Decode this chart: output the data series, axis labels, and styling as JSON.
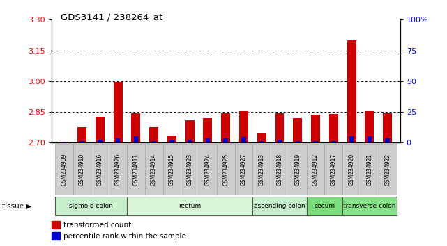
{
  "title": "GDS3141 / 238264_at",
  "samples": [
    "GSM234909",
    "GSM234910",
    "GSM234916",
    "GSM234926",
    "GSM234911",
    "GSM234914",
    "GSM234915",
    "GSM234923",
    "GSM234924",
    "GSM234925",
    "GSM234927",
    "GSM234913",
    "GSM234918",
    "GSM234919",
    "GSM234912",
    "GSM234917",
    "GSM234920",
    "GSM234921",
    "GSM234922"
  ],
  "red_values": [
    2.705,
    2.775,
    2.825,
    2.995,
    2.845,
    2.775,
    2.735,
    2.81,
    2.82,
    2.845,
    2.855,
    2.745,
    2.845,
    2.82,
    2.835,
    2.84,
    3.2,
    2.855,
    2.845
  ],
  "blue_values": [
    0.5,
    1.5,
    2.5,
    3.5,
    5.5,
    1.5,
    2.5,
    2.5,
    3.5,
    3.5,
    4.5,
    1.5,
    2.5,
    1.5,
    1.5,
    1.5,
    5.5,
    5.5,
    3.5
  ],
  "ymin": 2.7,
  "ymax": 3.3,
  "yticks": [
    2.7,
    2.85,
    3.0,
    3.15,
    3.3
  ],
  "right_yticks": [
    0,
    25,
    50,
    75,
    100
  ],
  "tissue_groups": [
    {
      "label": "sigmoid colon",
      "start": 0,
      "end": 3,
      "color": "#c8efcb"
    },
    {
      "label": "rectum",
      "start": 4,
      "end": 10,
      "color": "#d8f5d8"
    },
    {
      "label": "ascending colon",
      "start": 11,
      "end": 13,
      "color": "#c8efcb"
    },
    {
      "label": "cecum",
      "start": 14,
      "end": 15,
      "color": "#7ddc7d"
    },
    {
      "label": "transverse colon",
      "start": 16,
      "end": 18,
      "color": "#88e088"
    }
  ],
  "bar_width": 0.5,
  "blue_bar_width": 0.25,
  "legend_items": [
    {
      "color": "#cc0000",
      "label": "transformed count"
    },
    {
      "color": "#0000cc",
      "label": "percentile rank within the sample"
    }
  ],
  "bg_color": "#e8e8e8"
}
